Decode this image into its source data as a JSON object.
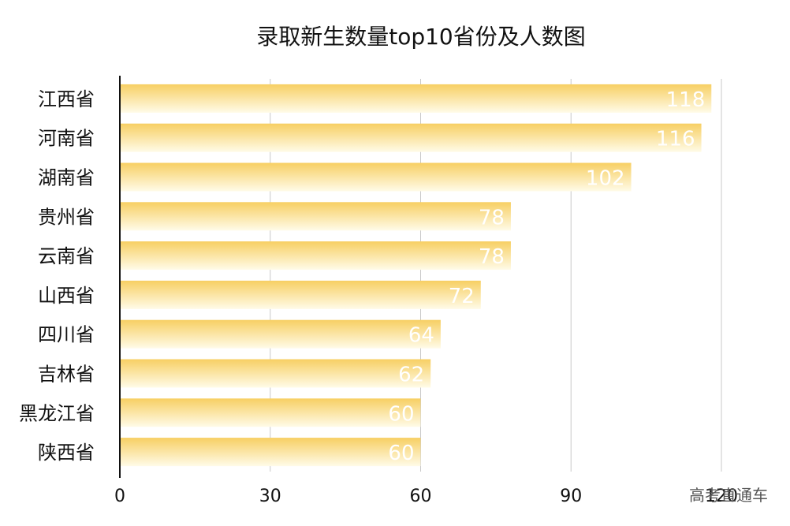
{
  "chart_data": {
    "type": "bar",
    "orientation": "horizontal",
    "title": "录取新生数量top10省份及人数图",
    "categories": [
      "江西省",
      "河南省",
      "湖南省",
      "贵州省",
      "云南省",
      "山西省",
      "四川省",
      "吉林省",
      "黑龙江省",
      "陕西省"
    ],
    "values": [
      118,
      116,
      102,
      78,
      78,
      72,
      64,
      62,
      60,
      60
    ],
    "xlim": [
      0,
      120
    ],
    "xticks": [
      0,
      30,
      60,
      90,
      120
    ],
    "grid": "vertical",
    "bar_gradient": [
      "#f7cf63",
      "#fffbe8"
    ],
    "data_label_color": "#ffffff"
  },
  "watermark": "高考直通车"
}
